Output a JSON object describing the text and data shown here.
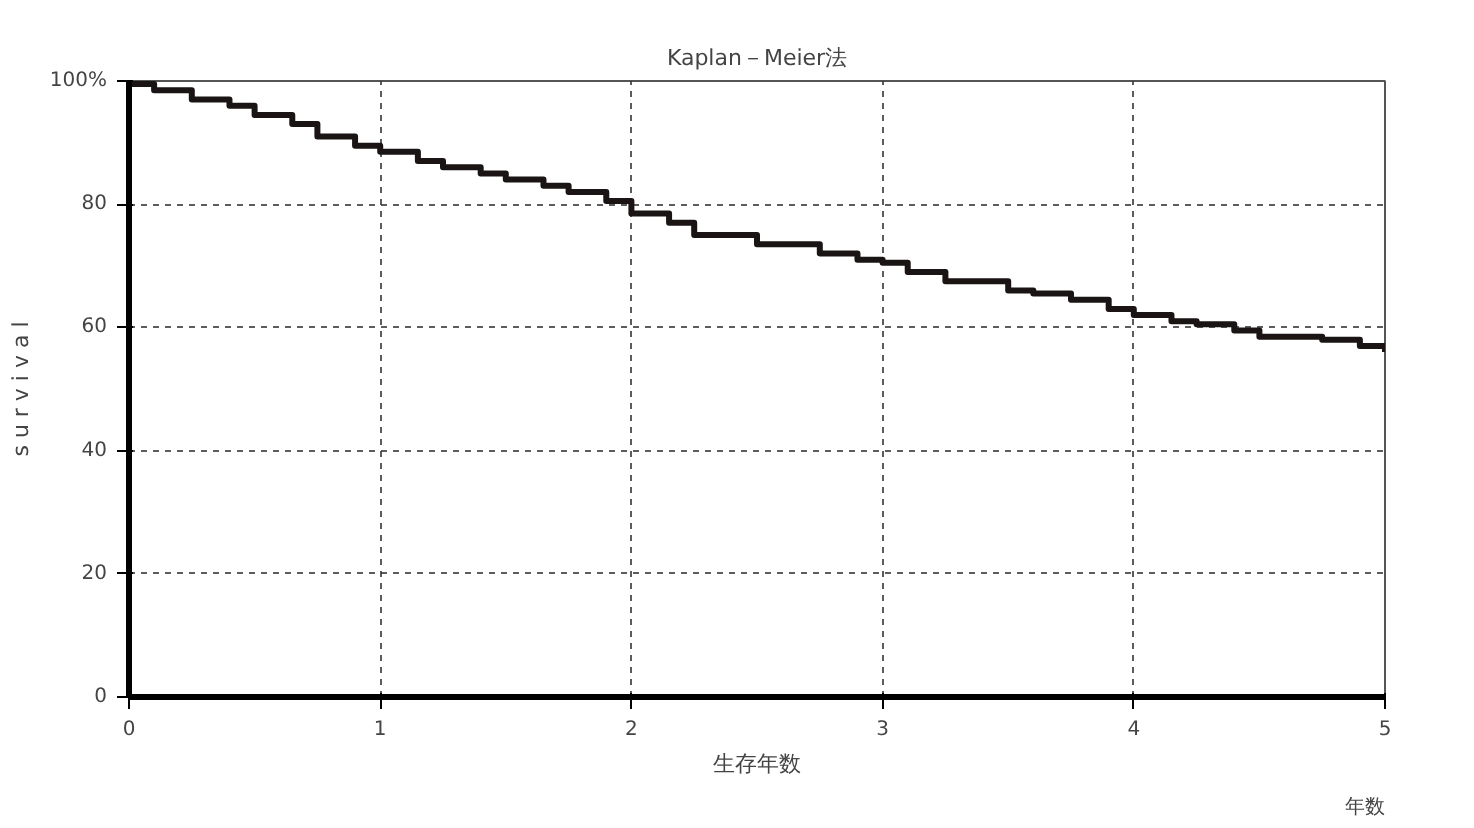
{
  "chart_data": {
    "type": "step",
    "title": "Kaplan－Meier法",
    "xlabel": "生存年数",
    "ylabel": "s u r v i v a l",
    "annotations": [
      "年数"
    ],
    "x": [
      0,
      0.1,
      0.25,
      0.4,
      0.5,
      0.65,
      0.75,
      0.9,
      1,
      1.15,
      1.25,
      1.4,
      1.5,
      1.65,
      1.75,
      1.9,
      2,
      2.15,
      2.25,
      2.5,
      2.75,
      2.9,
      3,
      3.1,
      3.25,
      3.5,
      3.6,
      3.75,
      3.9,
      4,
      4.15,
      4.25,
      4.4,
      4.5,
      4.75,
      4.9,
      5
    ],
    "series": [
      {
        "color": "#1a1414",
        "values": [
          99.5,
          98.5,
          97,
          96,
          94.5,
          93,
          91,
          89.5,
          88.5,
          87,
          86,
          85,
          84,
          83,
          82,
          80.5,
          78.5,
          77,
          75,
          73.5,
          72,
          71,
          70.5,
          69,
          67.5,
          66,
          65.5,
          64.5,
          63,
          62,
          61,
          60.5,
          59.5,
          58.5,
          58,
          57,
          56
        ]
      }
    ],
    "xlim": [
      0,
      5
    ],
    "ylim": [
      0,
      100
    ],
    "xticks": [
      0,
      1,
      2,
      3,
      4,
      5
    ],
    "yticks": [
      0,
      20,
      40,
      60,
      80,
      {
        "value": 100,
        "label": "100%"
      }
    ],
    "grid": true,
    "line_style": "solid"
  }
}
